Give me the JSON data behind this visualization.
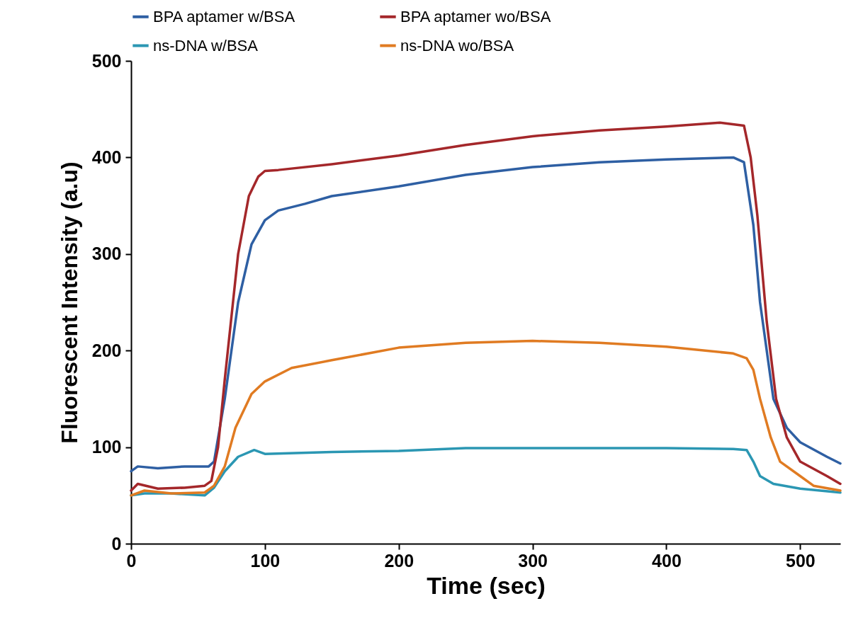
{
  "chart_data": {
    "type": "line",
    "xlabel": "Time (sec)",
    "ylabel": "Fluorescent Intensity (a.u)",
    "xlim": [
      0,
      530
    ],
    "ylim": [
      0,
      500
    ],
    "xticks": [
      0,
      100,
      200,
      300,
      400,
      500
    ],
    "yticks": [
      0,
      100,
      200,
      300,
      400,
      500
    ],
    "grid": false,
    "legend": "top",
    "marker": "none",
    "line_style": "solid",
    "series": [
      {
        "name": "BPA aptamer w/BSA",
        "color": "#2e5fa3",
        "x": [
          0,
          5,
          20,
          40,
          58,
          62,
          70,
          80,
          90,
          100,
          110,
          130,
          150,
          200,
          250,
          300,
          350,
          400,
          450,
          458,
          465,
          470,
          480,
          490,
          500,
          520,
          530
        ],
        "values": [
          75,
          80,
          78,
          80,
          80,
          85,
          150,
          250,
          310,
          335,
          345,
          352,
          360,
          370,
          382,
          390,
          395,
          398,
          400,
          395,
          330,
          250,
          150,
          120,
          105,
          90,
          83
        ]
      },
      {
        "name": "BPA aptamer wo/BSA",
        "color": "#a4272a",
        "x": [
          0,
          5,
          20,
          40,
          55,
          60,
          65,
          70,
          80,
          88,
          95,
          100,
          110,
          150,
          200,
          250,
          300,
          350,
          400,
          440,
          458,
          463,
          468,
          475,
          482,
          490,
          500,
          520,
          530
        ],
        "values": [
          55,
          62,
          57,
          58,
          60,
          65,
          100,
          170,
          300,
          360,
          380,
          386,
          387,
          393,
          402,
          413,
          422,
          428,
          432,
          436,
          433,
          400,
          340,
          230,
          150,
          110,
          85,
          70,
          62
        ]
      },
      {
        "name": "ns-DNA w/BSA",
        "color": "#2b97b3",
        "x": [
          0,
          10,
          30,
          55,
          62,
          70,
          80,
          92,
          100,
          150,
          200,
          250,
          300,
          350,
          400,
          450,
          460,
          465,
          470,
          480,
          500,
          530
        ],
        "values": [
          50,
          52,
          52,
          50,
          58,
          75,
          90,
          97,
          93,
          95,
          96,
          99,
          99,
          99,
          99,
          98,
          97,
          85,
          70,
          62,
          57,
          53
        ]
      },
      {
        "name": "ns-DNA wo/BSA",
        "color": "#e07b22",
        "x": [
          0,
          10,
          30,
          55,
          62,
          70,
          78,
          90,
          100,
          120,
          150,
          200,
          250,
          300,
          350,
          400,
          450,
          460,
          465,
          470,
          478,
          485,
          500,
          510,
          530
        ],
        "values": [
          50,
          55,
          52,
          53,
          60,
          80,
          120,
          155,
          168,
          182,
          190,
          203,
          208,
          210,
          208,
          204,
          197,
          192,
          180,
          150,
          110,
          85,
          70,
          60,
          55
        ]
      }
    ]
  }
}
